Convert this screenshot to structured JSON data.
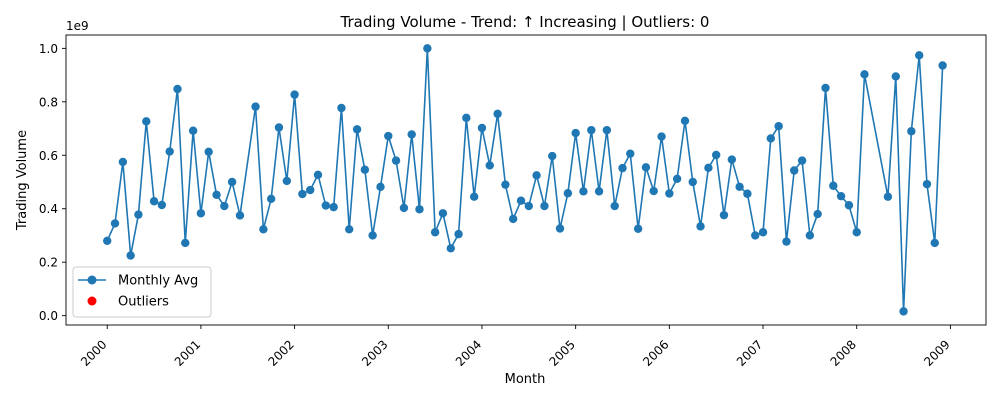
{
  "chart_data": {
    "type": "line",
    "title": "Trading Volume - Trend: ↑ Increasing | Outliers: 0",
    "xlabel": "Month",
    "ylabel": "Trading Volume",
    "y_offset_text": "1e9",
    "xlim": [
      1999.56,
      2009.38
    ],
    "ylim": [
      -0.035,
      1.05
    ],
    "grid": false,
    "legend_position": "lower-left",
    "x_ticks": [
      {
        "value": 2000,
        "label": "2000"
      },
      {
        "value": 2001,
        "label": "2001"
      },
      {
        "value": 2002,
        "label": "2002"
      },
      {
        "value": 2003,
        "label": "2003"
      },
      {
        "value": 2004,
        "label": "2004"
      },
      {
        "value": 2005,
        "label": "2005"
      },
      {
        "value": 2006,
        "label": "2006"
      },
      {
        "value": 2007,
        "label": "2007"
      },
      {
        "value": 2008,
        "label": "2008"
      },
      {
        "value": 2009,
        "label": "2009"
      }
    ],
    "y_ticks": [
      {
        "value": 0.0,
        "label": "0.0"
      },
      {
        "value": 0.2,
        "label": "0.2"
      },
      {
        "value": 0.4,
        "label": "0.4"
      },
      {
        "value": 0.6,
        "label": "0.6"
      },
      {
        "value": 0.8,
        "label": "0.8"
      },
      {
        "value": 1.0,
        "label": "1.0"
      }
    ],
    "series": [
      {
        "name": "Monthly Avg",
        "color": "#1f77b4",
        "marker": "circle",
        "x": [
          2000.0,
          2000.083,
          2000.167,
          2000.25,
          2000.333,
          2000.417,
          2000.5,
          2000.583,
          2000.667,
          2000.75,
          2000.833,
          2000.917,
          2001.0,
          2001.083,
          2001.167,
          2001.25,
          2001.333,
          2001.417,
          2001.583,
          2001.667,
          2001.75,
          2001.833,
          2001.917,
          2002.0,
          2002.083,
          2002.167,
          2002.25,
          2002.333,
          2002.417,
          2002.5,
          2002.583,
          2002.667,
          2002.75,
          2002.833,
          2002.917,
          2003.0,
          2003.083,
          2003.167,
          2003.25,
          2003.333,
          2003.417,
          2003.5,
          2003.583,
          2003.667,
          2003.75,
          2003.833,
          2003.917,
          2004.0,
          2004.083,
          2004.167,
          2004.25,
          2004.333,
          2004.417,
          2004.5,
          2004.583,
          2004.667,
          2004.75,
          2004.833,
          2004.917,
          2005.0,
          2005.083,
          2005.167,
          2005.25,
          2005.333,
          2005.417,
          2005.5,
          2005.583,
          2005.667,
          2005.75,
          2005.833,
          2005.917,
          2006.0,
          2006.083,
          2006.167,
          2006.25,
          2006.333,
          2006.417,
          2006.5,
          2006.583,
          2006.667,
          2006.75,
          2006.833,
          2006.917,
          2007.0,
          2007.083,
          2007.167,
          2007.25,
          2007.333,
          2007.417,
          2007.5,
          2007.583,
          2007.667,
          2007.75,
          2007.833,
          2007.917,
          2008.0,
          2008.083,
          2008.333,
          2008.417,
          2008.5,
          2008.583,
          2008.667,
          2008.75,
          2008.833,
          2008.917
        ],
        "values": [
          0.28,
          0.345,
          0.575,
          0.225,
          0.378,
          0.727,
          0.428,
          0.414,
          0.614,
          0.848,
          0.272,
          0.692,
          0.383,
          0.613,
          0.452,
          0.41,
          0.5,
          0.375,
          0.782,
          0.323,
          0.437,
          0.704,
          0.504,
          0.827,
          0.455,
          0.47,
          0.527,
          0.412,
          0.406,
          0.777,
          0.323,
          0.697,
          0.546,
          0.3,
          0.482,
          0.672,
          0.58,
          0.403,
          0.678,
          0.398,
          1.0,
          0.312,
          0.383,
          0.252,
          0.305,
          0.74,
          0.445,
          0.702,
          0.562,
          0.755,
          0.49,
          0.362,
          0.43,
          0.41,
          0.525,
          0.41,
          0.597,
          0.326,
          0.458,
          0.683,
          0.465,
          0.694,
          0.465,
          0.694,
          0.41,
          0.552,
          0.606,
          0.325,
          0.555,
          0.466,
          0.67,
          0.457,
          0.512,
          0.729,
          0.5,
          0.334,
          0.553,
          0.601,
          0.376,
          0.584,
          0.482,
          0.456,
          0.3,
          0.312,
          0.663,
          0.709,
          0.277,
          0.543,
          0.58,
          0.3,
          0.38,
          0.852,
          0.486,
          0.447,
          0.413,
          0.312,
          0.903,
          0.445,
          0.895,
          0.016,
          0.69,
          0.974,
          0.492,
          0.272,
          0.936
        ]
      },
      {
        "name": "Outliers",
        "color": "#ff0000",
        "marker": "circle",
        "x": [],
        "values": []
      }
    ]
  }
}
